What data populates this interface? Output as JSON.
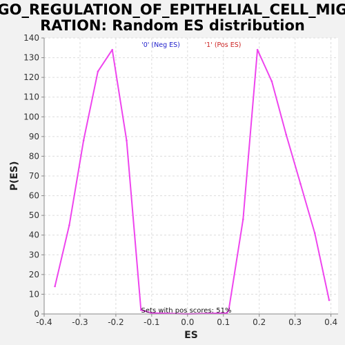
{
  "chart_data": {
    "type": "line",
    "title_lines": [
      "GO_REGULATION_OF_EPITHELIAL_CELL_MIG",
      "RATION: Random ES distribution"
    ],
    "xlabel": "ES",
    "ylabel": "P(ES)",
    "xlim": [
      -0.4,
      0.42
    ],
    "ylim": [
      0,
      140
    ],
    "xticks": [
      -0.4,
      -0.3,
      -0.2,
      -0.1,
      0.0,
      0.1,
      0.2,
      0.3,
      0.4
    ],
    "xtick_labels": [
      "-0.4",
      "-0.3",
      "-0.2",
      "-0.1",
      "0.0",
      "0.1",
      "0.2",
      "0.3",
      "0.4"
    ],
    "yticks": [
      0,
      10,
      20,
      30,
      40,
      50,
      60,
      70,
      80,
      90,
      100,
      110,
      120,
      130,
      140
    ],
    "grid": true,
    "legend": [
      {
        "label": "'0' (Neg ES)",
        "color": "#2222cc"
      },
      {
        "label": "'1' (Pos ES)",
        "color": "#cc2222"
      }
    ],
    "series": [
      {
        "color": "#ee44ee",
        "points": [
          [
            -0.37,
            14
          ],
          [
            -0.33,
            45
          ],
          [
            -0.29,
            88
          ],
          [
            -0.25,
            123
          ],
          [
            -0.21,
            134
          ],
          [
            -0.17,
            88
          ],
          [
            -0.13,
            2
          ],
          [
            -0.1,
            0.5
          ],
          [
            0.0,
            0
          ],
          [
            0.11,
            0.5
          ],
          [
            0.115,
            2
          ],
          [
            0.155,
            48
          ],
          [
            0.195,
            134
          ],
          [
            0.235,
            118
          ],
          [
            0.275,
            91
          ],
          [
            0.315,
            66
          ],
          [
            0.355,
            41
          ],
          [
            0.395,
            7
          ]
        ]
      }
    ],
    "annotation": "Sets with pos scores: 51%"
  }
}
